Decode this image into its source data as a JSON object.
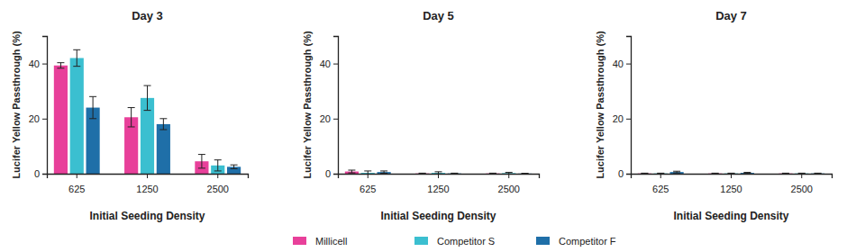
{
  "chart_data": [
    {
      "type": "bar",
      "title": "Day 3",
      "x_label": "Initial Seeding Density",
      "y_label": "Lucifer Yellow Passthrough (%)",
      "categories": [
        "625",
        "1250",
        "2500"
      ],
      "ylim": [
        0,
        50
      ],
      "yticks": [
        0,
        20,
        40
      ],
      "legend": "bottom",
      "series": [
        {
          "name": "Millicell",
          "color": "#e8409a",
          "values": [
            39.3,
            20.5,
            4.5
          ],
          "errors": [
            1,
            3.5,
            2.5
          ]
        },
        {
          "name": "Competitor S",
          "color": "#3bbfd0",
          "values": [
            42,
            27.5,
            3
          ],
          "errors": [
            3,
            4.5,
            2
          ]
        },
        {
          "name": "Competitor F",
          "color": "#1f6fa8",
          "values": [
            24,
            18,
            2.5
          ],
          "errors": [
            4,
            2,
            0.7
          ]
        }
      ]
    },
    {
      "type": "bar",
      "title": "Day 5",
      "x_label": "Initial Seeding Density",
      "y_label": "Lucifer Yellow Passthrough (%)",
      "categories": [
        "625",
        "1250",
        "2500"
      ],
      "ylim": [
        0,
        50
      ],
      "yticks": [
        0,
        20,
        40
      ],
      "series": [
        {
          "name": "Millicell",
          "color": "#e8409a",
          "values": [
            0.8,
            0.1,
            0.1
          ],
          "errors": [
            0.5,
            0.1,
            0.1
          ]
        },
        {
          "name": "Competitor S",
          "color": "#3bbfd0",
          "values": [
            0.3,
            0.3,
            0.2
          ],
          "errors": [
            0.7,
            0.4,
            0.3
          ]
        },
        {
          "name": "Competitor F",
          "color": "#1f6fa8",
          "values": [
            0.6,
            0.1,
            0.05
          ],
          "errors": [
            0.4,
            0.1,
            0.1
          ]
        }
      ]
    },
    {
      "type": "bar",
      "title": "Day 7",
      "x_label": "Initial Seeding Density",
      "y_label": "Lucifer Yellow Passthrough (%)",
      "categories": [
        "625",
        "1250",
        "2500"
      ],
      "ylim": [
        0,
        50
      ],
      "yticks": [
        0,
        20,
        40
      ],
      "series": [
        {
          "name": "Millicell",
          "color": "#e8409a",
          "values": [
            0.1,
            0.1,
            0.1
          ],
          "errors": [
            0.1,
            0.1,
            0.1
          ]
        },
        {
          "name": "Competitor S",
          "color": "#3bbfd0",
          "values": [
            0.1,
            0.1,
            0.1
          ],
          "errors": [
            0.1,
            0.1,
            0.1
          ]
        },
        {
          "name": "Competitor F",
          "color": "#1f6fa8",
          "values": [
            0.6,
            0.3,
            0.1
          ],
          "errors": [
            0.3,
            0.2,
            0.1
          ]
        }
      ]
    }
  ]
}
